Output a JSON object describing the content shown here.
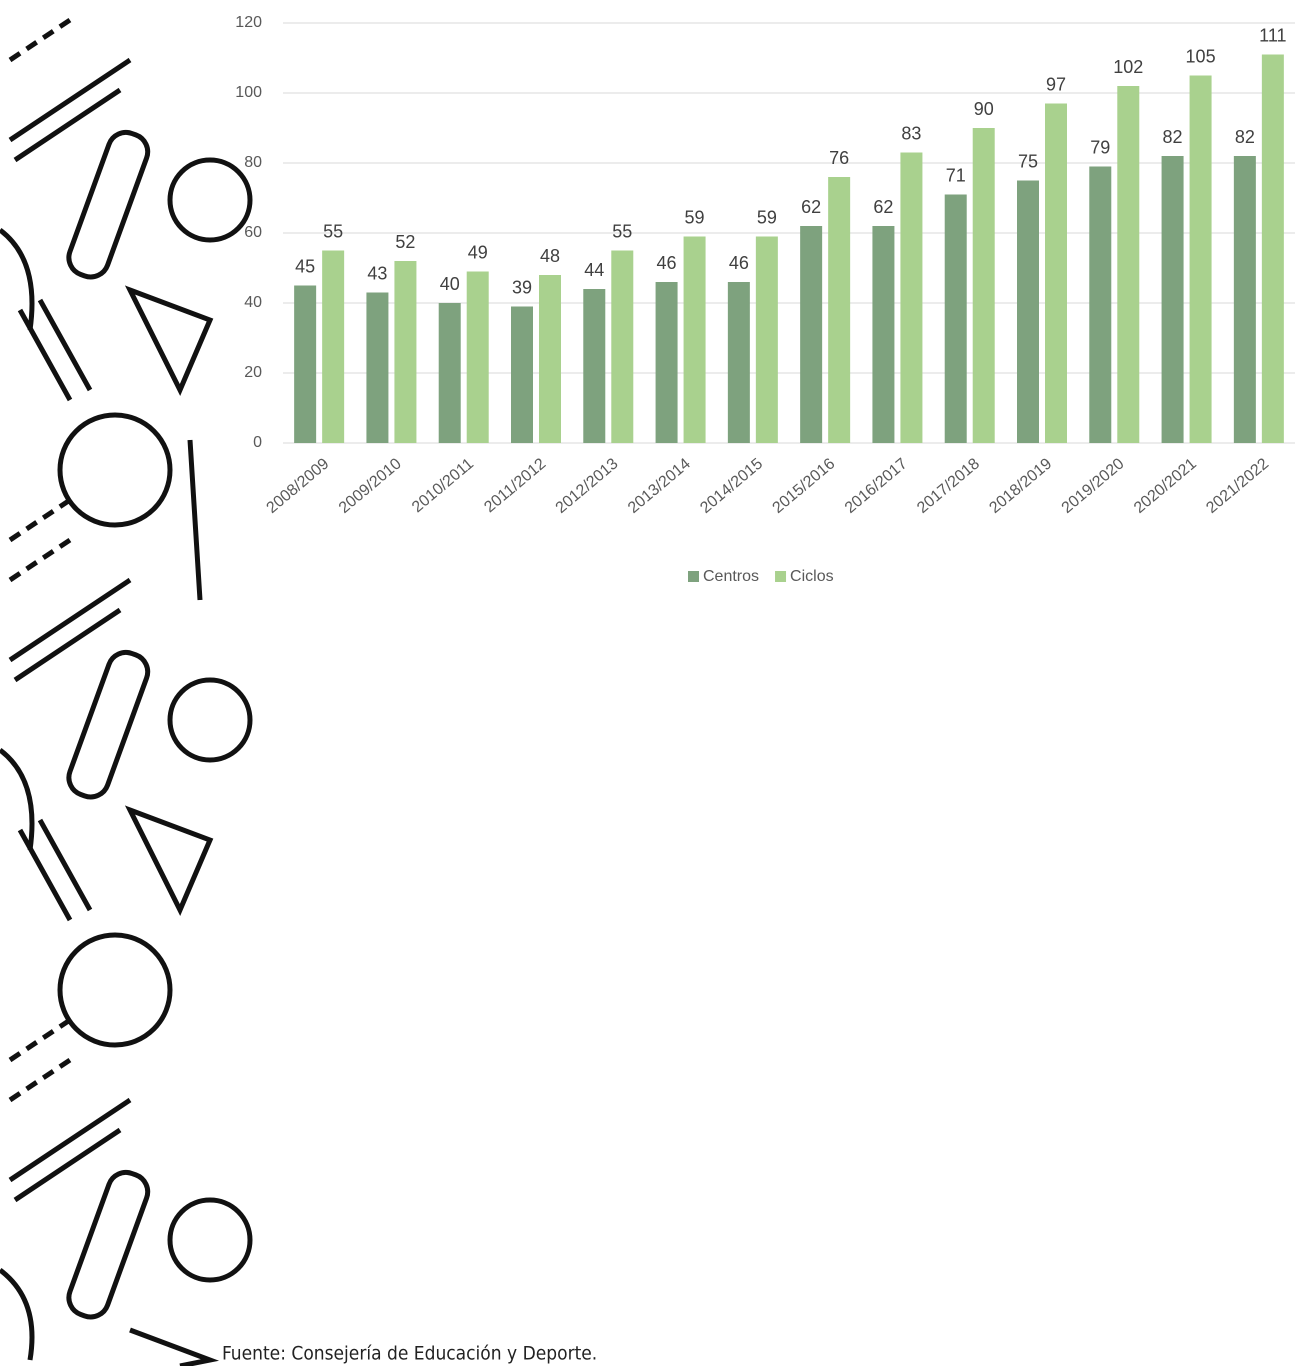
{
  "chart_data": {
    "type": "bar",
    "categories": [
      "2008/2009",
      "2009/2010",
      "2010/2011",
      "2011/2012",
      "2012/2013",
      "2013/2014",
      "2014/2015",
      "2015/2016",
      "2016/2017",
      "2017/2018",
      "2018/2019",
      "2019/2020",
      "2020/2021",
      "2021/2022"
    ],
    "series": [
      {
        "name": "Centros",
        "color": "#7ea27e",
        "values": [
          45,
          43,
          40,
          39,
          44,
          46,
          46,
          62,
          62,
          71,
          75,
          79,
          82,
          82
        ]
      },
      {
        "name": "Ciclos",
        "color": "#a9d18e",
        "values": [
          55,
          52,
          49,
          48,
          55,
          59,
          59,
          76,
          83,
          90,
          97,
          102,
          105,
          111
        ]
      }
    ],
    "ylim": [
      0,
      120
    ],
    "yticks": [
      0,
      20,
      40,
      60,
      80,
      100,
      120
    ],
    "grid": true,
    "legend": "bottom",
    "source": "Fuente: Consejería de Educación y Deporte."
  }
}
